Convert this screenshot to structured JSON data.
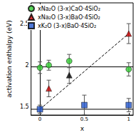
{
  "chart_data": {
    "type": "scatter",
    "x_label": "x",
    "y_label": "activation enthalpy (eV)",
    "xlim": [
      -0.1,
      1.05
    ],
    "xticks": [
      0,
      0.5,
      1
    ],
    "ylim": [
      1.4,
      2.75
    ],
    "yticks": [
      1.5,
      2,
      2.5
    ],
    "grid": false,
    "legend": "upper left",
    "series": [
      {
        "name": "xNa₂O (3-x)CaO·4SiO₂",
        "color": "#33cc33",
        "marker": "circle",
        "x": [
          0,
          0.1,
          0.33,
          1
        ],
        "values": [
          1.97,
          2.0,
          2.05,
          1.95
        ],
        "errors": [
          0.07,
          0.06,
          0.08,
          0.08
        ]
      },
      {
        "name": "xNa₂O (3-x)BaO·4SiO₂",
        "color": "#cc0000",
        "marker": "triangle",
        "x": [
          0.1,
          0.33,
          1
        ],
        "values": [
          1.72,
          1.88,
          2.38
        ],
        "colors": [
          "#cc0000",
          "#000000",
          "#cc0000"
        ],
        "errors": [
          0.1,
          0.1,
          0.12
        ]
      },
      {
        "name": "xK₂O (3-x)BaO·4SiO₂",
        "color": "#2255cc",
        "marker": "square",
        "x": [
          0,
          0.5,
          1
        ],
        "values": [
          1.47,
          1.52,
          1.52
        ],
        "errors": [
          0.05,
          0.12,
          0.08
        ]
      }
    ],
    "lines": [
      {
        "x": [
          -0.1,
          1.05
        ],
        "values": [
          1.98,
          1.98
        ],
        "line_style": "solid",
        "color": "#000000"
      },
      {
        "x": [
          -0.1,
          1.05
        ],
        "values": [
          1.47,
          1.47
        ],
        "line_style": "solid",
        "color": "#000000"
      },
      {
        "x": [
          0,
          1
        ],
        "values": [
          1.47,
          2.38
        ],
        "line_style": "dashed",
        "color": "#000000"
      }
    ]
  }
}
